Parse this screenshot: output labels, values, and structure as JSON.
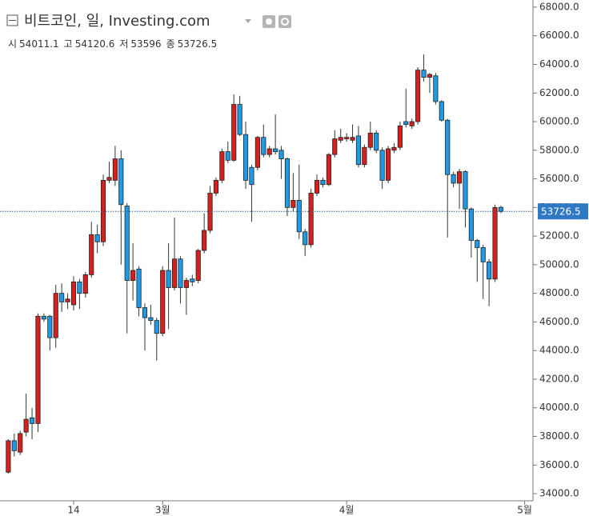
{
  "chart_data": {
    "type": "candlestick",
    "title": "비트코인, 일, Investing.com",
    "ohlc_labels": [
      "시",
      "고",
      "저",
      "종"
    ],
    "up_color": "#d61f1f",
    "down_color": "#1e9be8",
    "open": [
      35500,
      37700,
      36900,
      38300,
      39300,
      38900,
      46400,
      46400,
      44900,
      48000,
      47400,
      47200,
      48800,
      48000,
      49300,
      52100,
      51600,
      55900,
      55900,
      57400,
      54100,
      48900,
      49700,
      47000,
      46300,
      46100,
      45200,
      49600,
      48400,
      50400,
      48400,
      49000,
      48900,
      51000,
      52400,
      55000,
      55900,
      57900,
      57300,
      61200,
      59100,
      56800,
      56800,
      58900,
      57700,
      58100,
      58000,
      57400,
      54000,
      54500,
      52300,
      51400,
      55000,
      55900,
      55600,
      57700,
      58700,
      58800,
      58700,
      59000,
      57000,
      58200,
      59200,
      58000,
      55900,
      58000,
      58200,
      60000,
      59700,
      60000,
      63600,
      63100,
      63200,
      61400,
      60100,
      56300,
      55700,
      56500,
      53900,
      51700,
      51200,
      50200,
      49000,
      54011.1
    ],
    "high": [
      37800,
      38200,
      38400,
      41000,
      40000,
      46600,
      46600,
      46500,
      48600,
      48700,
      48000,
      49200,
      49000,
      49500,
      53000,
      52800,
      56300,
      57200,
      58300,
      58000,
      54300,
      51500,
      49900,
      47300,
      47200,
      46300,
      49900,
      51500,
      53300,
      50600,
      49100,
      49300,
      51100,
      53600,
      55500,
      56100,
      58100,
      58600,
      61900,
      61800,
      60000,
      57000,
      59000,
      59800,
      58300,
      60500,
      58300,
      57500,
      56400,
      57000,
      52500,
      55300,
      56300,
      56100,
      57800,
      59400,
      59500,
      59200,
      59800,
      59700,
      58400,
      60000,
      59400,
      58200,
      58300,
      58500,
      60000,
      62300,
      60200,
      63800,
      64700,
      63400,
      63400,
      61500,
      60200,
      56500,
      56700,
      56600,
      54000,
      51800,
      51400,
      50400,
      54200,
      54120.6
    ],
    "low": [
      35400,
      36600,
      36700,
      38000,
      37800,
      38300,
      46000,
      44000,
      44200,
      46700,
      46900,
      46800,
      46900,
      47700,
      49100,
      50800,
      51300,
      55700,
      55500,
      50000,
      45200,
      47500,
      46400,
      44000,
      45800,
      43300,
      45000,
      45500,
      48200,
      47300,
      46500,
      48500,
      48700,
      50800,
      52200,
      54800,
      55700,
      57100,
      57200,
      59000,
      55300,
      53000,
      56600,
      57500,
      57500,
      57700,
      56000,
      53400,
      53700,
      51800,
      50600,
      51200,
      54800,
      55400,
      55500,
      57500,
      58500,
      58600,
      58500,
      56800,
      56800,
      58000,
      57800,
      55300,
      55700,
      57800,
      58000,
      59600,
      59500,
      59800,
      62800,
      62000,
      61200,
      60000,
      51900,
      55400,
      53900,
      52600,
      50500,
      48800,
      47600,
      47100,
      48800,
      53596.0
    ],
    "close": [
      37700,
      37000,
      38200,
      39200,
      38900,
      46400,
      46200,
      44900,
      48000,
      47400,
      47600,
      48800,
      48000,
      49300,
      52100,
      51600,
      55900,
      56100,
      57400,
      54200,
      48900,
      49600,
      47000,
      46300,
      46100,
      45200,
      49600,
      48400,
      50400,
      48400,
      48900,
      48800,
      51000,
      52400,
      55000,
      55900,
      57900,
      57300,
      61200,
      59100,
      55900,
      55600,
      58900,
      57700,
      58100,
      57900,
      57400,
      54000,
      54500,
      52300,
      51400,
      55000,
      55900,
      55600,
      57700,
      58800,
      58900,
      58900,
      58900,
      57000,
      58200,
      59200,
      58000,
      55900,
      58100,
      58200,
      59700,
      59800,
      60000,
      63600,
      63100,
      63300,
      61400,
      60100,
      56300,
      55700,
      56500,
      53900,
      51700,
      51200,
      50200,
      49000,
      54000,
      53726.5
    ],
    "xlim": [
      -1.4,
      88.4
    ],
    "xticks": [
      {
        "value": 11,
        "label": "14"
      },
      {
        "value": 26,
        "label": "3월"
      },
      {
        "value": 57,
        "label": "4월"
      },
      {
        "value": 87,
        "label": "5월"
      }
    ],
    "ylim": [
      33500,
      68500
    ],
    "yticks": [
      {
        "value": 34000,
        "label": "34000.0"
      },
      {
        "value": 36000,
        "label": "36000.0"
      },
      {
        "value": 38000,
        "label": "38000.0"
      },
      {
        "value": 40000,
        "label": "40000.0"
      },
      {
        "value": 42000,
        "label": "42000.0"
      },
      {
        "value": 44000,
        "label": "44000.0"
      },
      {
        "value": 46000,
        "label": "46000.0"
      },
      {
        "value": 48000,
        "label": "48000.0"
      },
      {
        "value": 50000,
        "label": "50000.0"
      },
      {
        "value": 52000,
        "label": "52000.0"
      },
      {
        "value": 54000,
        "label": "54000.0"
      },
      {
        "value": 56000,
        "label": "56000.0"
      },
      {
        "value": 58000,
        "label": "58000.0"
      },
      {
        "value": 60000,
        "label": "60000.0"
      },
      {
        "value": 62000,
        "label": "62000.0"
      },
      {
        "value": 64000,
        "label": "64000.0"
      },
      {
        "value": 66000,
        "label": "66000.0"
      },
      {
        "value": 68000,
        "label": "68000.0"
      }
    ],
    "grid": false
  }
}
